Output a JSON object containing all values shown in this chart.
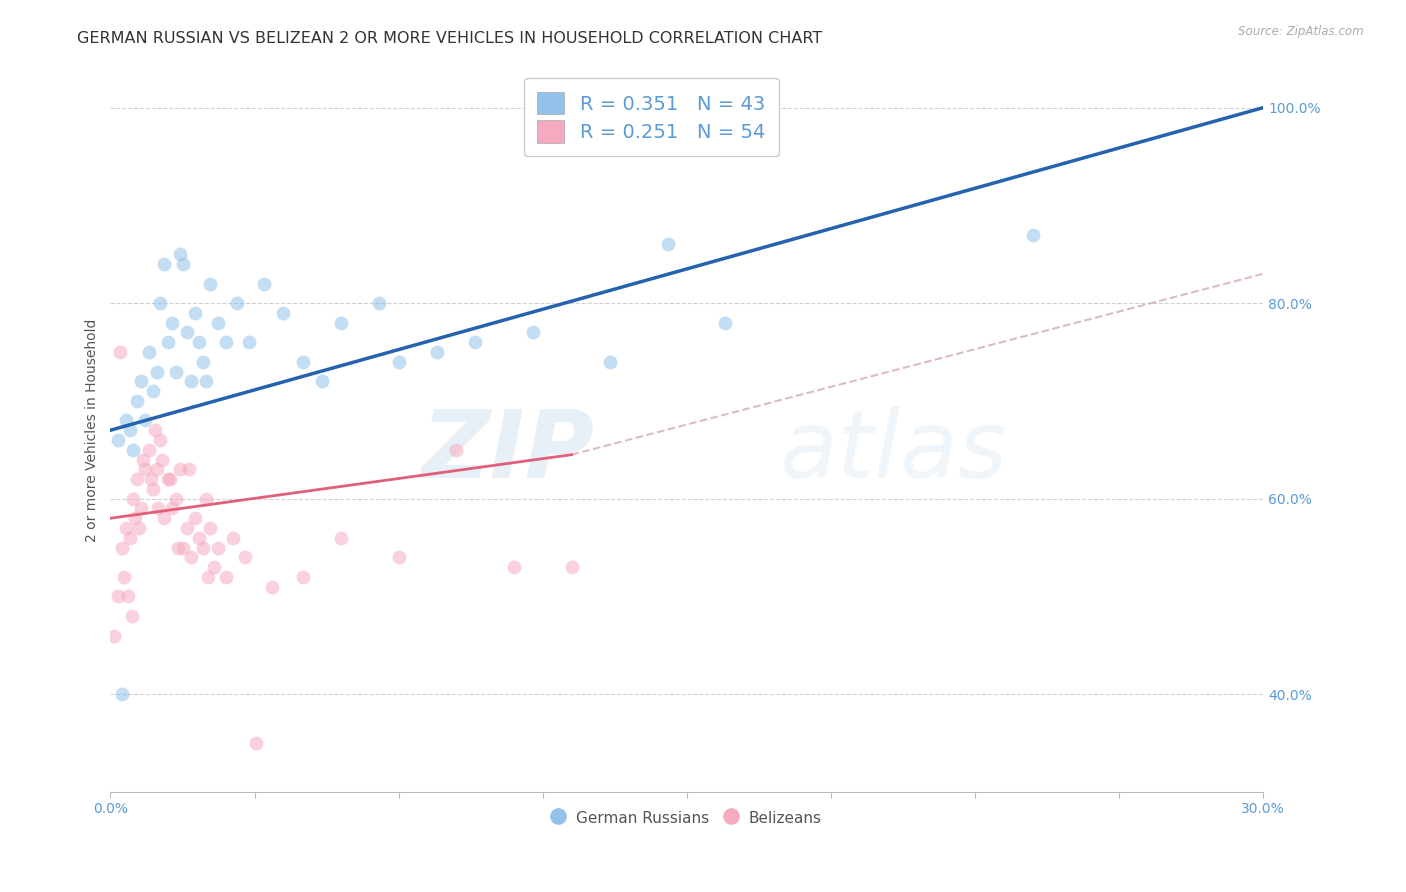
{
  "title": "GERMAN RUSSIAN VS BELIZEAN 2 OR MORE VEHICLES IN HOUSEHOLD CORRELATION CHART",
  "source": "Source: ZipAtlas.com",
  "ylabel": "2 or more Vehicles in Household",
  "legend_blue_R": "R = 0.351",
  "legend_blue_N": "N = 43",
  "legend_pink_R": "R = 0.251",
  "legend_pink_N": "N = 54",
  "legend_blue_label": "German Russians",
  "legend_pink_label": "Belizeans",
  "xlim": [
    0.0,
    30.0
  ],
  "ylim": [
    30.0,
    104.0
  ],
  "yticks": [
    40.0,
    60.0,
    80.0,
    100.0
  ],
  "xticks": [
    0.0,
    3.75,
    7.5,
    11.25,
    15.0,
    18.75,
    22.5,
    26.25,
    30.0
  ],
  "xtick_labels_show": [
    "0.0%",
    "",
    "",
    "",
    "",
    "",
    "",
    "",
    "30.0%"
  ],
  "blue_color": "#92C1EA",
  "pink_color": "#F5AABF",
  "blue_line_color": "#2563AE",
  "pink_line_color": "#E0607A",
  "pink_dash_color": "#D4AABB",
  "watermark_zip": "ZIP",
  "watermark_atlas": "atlas",
  "blue_scatter_x": [
    0.3,
    0.5,
    0.6,
    0.7,
    0.8,
    0.9,
    1.0,
    1.1,
    1.2,
    1.3,
    1.4,
    1.5,
    1.6,
    1.7,
    1.8,
    1.9,
    2.0,
    2.1,
    2.2,
    2.3,
    2.4,
    2.5,
    2.6,
    2.8,
    3.0,
    3.3,
    3.6,
    4.0,
    4.5,
    5.0,
    5.5,
    6.0,
    7.0,
    7.5,
    8.5,
    9.5,
    11.0,
    13.0,
    14.5,
    16.0,
    24.0,
    0.4,
    0.2
  ],
  "blue_scatter_y": [
    40.0,
    67.0,
    65.0,
    70.0,
    72.0,
    68.0,
    75.0,
    71.0,
    73.0,
    80.0,
    84.0,
    76.0,
    78.0,
    73.0,
    85.0,
    84.0,
    77.0,
    72.0,
    79.0,
    76.0,
    74.0,
    72.0,
    82.0,
    78.0,
    76.0,
    80.0,
    76.0,
    82.0,
    79.0,
    74.0,
    72.0,
    78.0,
    80.0,
    74.0,
    75.0,
    76.0,
    77.0,
    74.0,
    86.0,
    78.0,
    87.0,
    68.0,
    66.0
  ],
  "pink_scatter_x": [
    0.1,
    0.2,
    0.3,
    0.35,
    0.4,
    0.5,
    0.6,
    0.65,
    0.7,
    0.8,
    0.85,
    0.9,
    1.0,
    1.1,
    1.15,
    1.2,
    1.3,
    1.35,
    1.4,
    1.5,
    1.6,
    1.7,
    1.8,
    1.9,
    2.0,
    2.1,
    2.2,
    2.3,
    2.4,
    2.5,
    2.6,
    2.7,
    2.8,
    3.0,
    3.2,
    3.5,
    3.8,
    4.2,
    5.0,
    6.0,
    7.5,
    9.0,
    10.5,
    12.0,
    0.25,
    0.45,
    0.55,
    0.75,
    1.05,
    1.25,
    1.55,
    1.75,
    2.05,
    2.55
  ],
  "pink_scatter_y": [
    46.0,
    50.0,
    55.0,
    52.0,
    57.0,
    56.0,
    60.0,
    58.0,
    62.0,
    59.0,
    64.0,
    63.0,
    65.0,
    61.0,
    67.0,
    63.0,
    66.0,
    64.0,
    58.0,
    62.0,
    59.0,
    60.0,
    63.0,
    55.0,
    57.0,
    54.0,
    58.0,
    56.0,
    55.0,
    60.0,
    57.0,
    53.0,
    55.0,
    52.0,
    56.0,
    54.0,
    35.0,
    51.0,
    52.0,
    56.0,
    54.0,
    65.0,
    53.0,
    53.0,
    75.0,
    50.0,
    48.0,
    57.0,
    62.0,
    59.0,
    62.0,
    55.0,
    63.0,
    52.0
  ],
  "blue_line_x0": 0.0,
  "blue_line_x1": 30.0,
  "blue_line_y0": 67.0,
  "blue_line_y1": 100.0,
  "pink_line_x0": 0.0,
  "pink_line_x1": 12.0,
  "pink_line_y0": 58.0,
  "pink_line_y1": 64.5,
  "pink_dash_x0": 12.0,
  "pink_dash_x1": 30.0,
  "pink_dash_y0": 64.5,
  "pink_dash_y1": 83.0,
  "grid_color": "#CCCCCC",
  "background_color": "#FFFFFF",
  "title_fontsize": 11.5,
  "axis_label_fontsize": 10,
  "tick_fontsize": 10,
  "scatter_size": 100,
  "scatter_alpha": 0.55
}
